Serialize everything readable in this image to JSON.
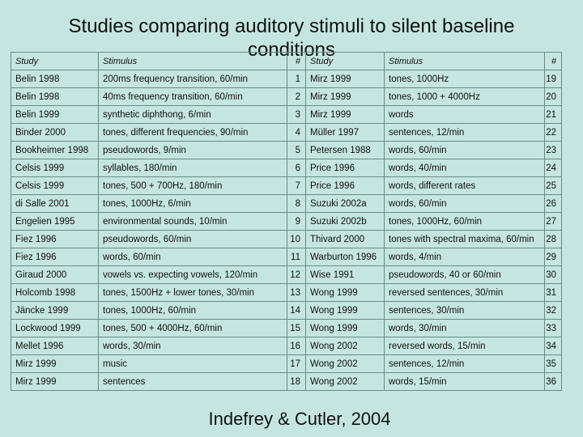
{
  "title": "Studies comparing auditory stimuli to silent baseline conditions",
  "headers": [
    "Study",
    "Stimulus",
    "#",
    "Study",
    "Stimulus",
    "#"
  ],
  "rows": [
    {
      "study1": "Belin 1998",
      "stim1": "200ms frequency transition, 60/min",
      "n1": "1",
      "study2": "Mirz 1999",
      "stim2": "tones, 1000Hz",
      "n2": "19"
    },
    {
      "study1": "Belin 1998",
      "stim1": "40ms frequency transition, 60/min",
      "n1": "2",
      "study2": "Mirz 1999",
      "stim2": "tones, 1000 + 4000Hz",
      "n2": "20"
    },
    {
      "study1": "Belin 1999",
      "stim1": "synthetic diphthong, 6/min",
      "n1": "3",
      "study2": "Mirz 1999",
      "stim2": "words",
      "n2": "21"
    },
    {
      "study1": "Binder 2000",
      "stim1": "tones, different frequencies, 90/min",
      "n1": "4",
      "study2": "Müller 1997",
      "stim2": "sentences, 12/min",
      "n2": "22"
    },
    {
      "study1": "Bookheimer 1998",
      "stim1": "pseudowords, 9/min",
      "n1": "5",
      "study2": "Petersen 1988",
      "stim2": "words, 60/min",
      "n2": "23"
    },
    {
      "study1": "Celsis 1999",
      "stim1": "syllables, 180/min",
      "n1": "6",
      "study2": "Price 1996",
      "stim2": "words, 40/min",
      "n2": "24"
    },
    {
      "study1": "Celsis 1999",
      "stim1": "tones, 500 + 700Hz, 180/min",
      "n1": "7",
      "study2": "Price 1996",
      "stim2": "words, different rates",
      "n2": "25"
    },
    {
      "study1": "di Salle 2001",
      "stim1": "tones, 1000Hz, 6/min",
      "n1": "8",
      "study2": "Suzuki 2002a",
      "stim2": "words, 60/min",
      "n2": "26"
    },
    {
      "study1": "Engelien 1995",
      "stim1": "environmental sounds, 10/min",
      "n1": "9",
      "study2": "Suzuki 2002b",
      "stim2": "tones, 1000Hz, 60/min",
      "n2": "27"
    },
    {
      "study1": "Fiez 1996",
      "stim1": "pseudowords, 60/min",
      "n1": "10",
      "study2": "Thivard 2000",
      "stim2": "tones with spectral maxima, 60/min",
      "n2": "28"
    },
    {
      "study1": "Fiez 1996",
      "stim1": "words, 60/min",
      "n1": "11",
      "study2": "Warburton 1996",
      "stim2": "words, 4/min",
      "n2": "29"
    },
    {
      "study1": "Giraud 2000",
      "stim1": "vowels vs. expecting vowels, 120/min",
      "n1": "12",
      "study2": "Wise 1991",
      "stim2": "pseudowords, 40 or 60/min",
      "n2": "30"
    },
    {
      "study1": "Holcomb 1998",
      "stim1": "tones, 1500Hz + lower tones, 30/min",
      "n1": "13",
      "study2": "Wong 1999",
      "stim2": "reversed sentences, 30/min",
      "n2": "31"
    },
    {
      "study1": "Jäncke 1999",
      "stim1": "tones, 1000Hz, 60/min",
      "n1": "14",
      "study2": "Wong 1999",
      "stim2": "sentences, 30/min",
      "n2": "32"
    },
    {
      "study1": "Lockwood 1999",
      "stim1": "tones, 500 + 4000Hz, 60/min",
      "n1": "15",
      "study2": "Wong 1999",
      "stim2": "words, 30/min",
      "n2": "33"
    },
    {
      "study1": "Mellet 1996",
      "stim1": "words, 30/min",
      "n1": "16",
      "study2": "Wong 2002",
      "stim2": "reversed words, 15/min",
      "n2": "34"
    },
    {
      "study1": "Mirz 1999",
      "stim1": "music",
      "n1": "17",
      "study2": "Wong 2002",
      "stim2": "sentences, 12/min",
      "n2": "35"
    },
    {
      "study1": "Mirz 1999",
      "stim1": "sentences",
      "n1": "18",
      "study2": "Wong 2002",
      "stim2": "words, 15/min",
      "n2": "36"
    }
  ],
  "caption": "Indefrey & Cutler, 2004"
}
